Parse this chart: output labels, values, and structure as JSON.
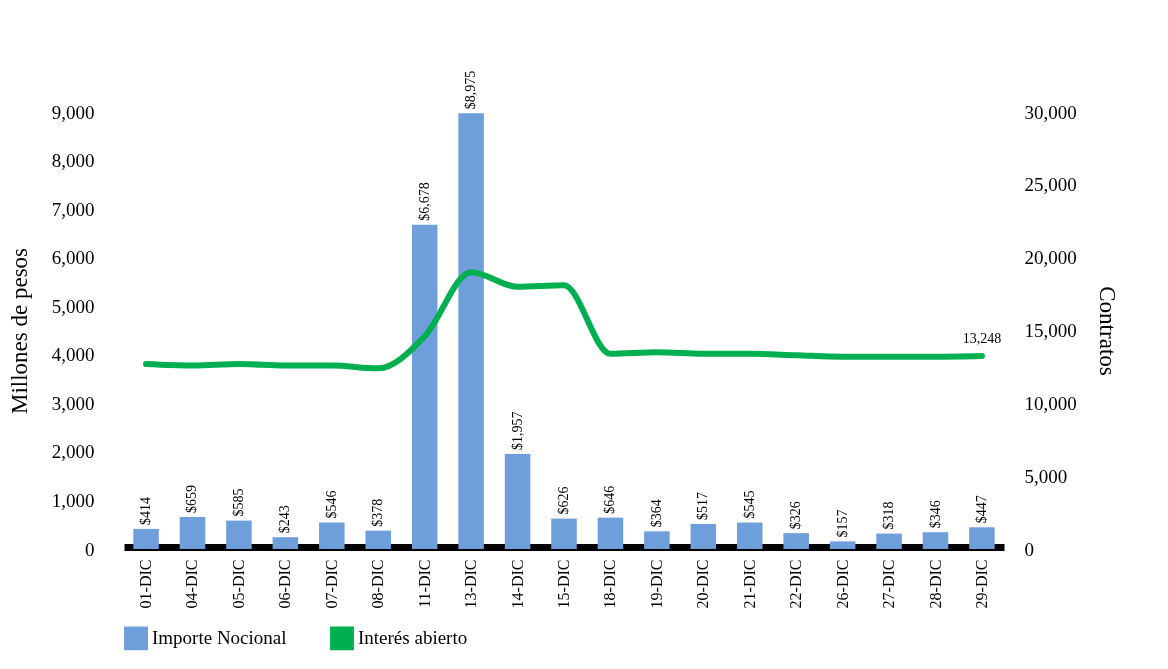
{
  "chart_data": {
    "type": "bar",
    "ylabel": "Millones de pesos",
    "y2label": "Contratos",
    "categories": [
      "01-DIC",
      "04-DIC",
      "05-DIC",
      "06-DIC",
      "07-DIC",
      "08-DIC",
      "11-DIC",
      "13-DIC",
      "14-DIC",
      "15-DIC",
      "18-DIC",
      "19-DIC",
      "20-DIC",
      "21-DIC",
      "22-DIC",
      "26-DIC",
      "27-DIC",
      "28-DIC",
      "29-DIC"
    ],
    "series": [
      {
        "name": "Importe Nocional",
        "color": "#6f9fdb",
        "values": [
          414,
          659,
          585,
          243,
          546,
          378,
          6678,
          8975,
          1957,
          626,
          646,
          364,
          517,
          545,
          326,
          157,
          318,
          346,
          447
        ],
        "value_labels": [
          "$414",
          "$659",
          "$585",
          "$243",
          "$546",
          "$378",
          "$6,678",
          "$8,975",
          "$1,957",
          "$626",
          "$646",
          "$364",
          "$517",
          "$545",
          "$326",
          "$157",
          "$318",
          "$346",
          "$447"
        ]
      },
      {
        "name": "Interés abierto",
        "type": "line",
        "axis": "y2",
        "color": "#00b050",
        "values": [
          12700,
          12600,
          12700,
          12600,
          12600,
          12400,
          14600,
          19000,
          18000,
          18100,
          13400,
          13500,
          13400,
          13400,
          13300,
          13200,
          13200,
          13200,
          13248
        ],
        "value_labels": [
          null,
          null,
          null,
          null,
          null,
          null,
          null,
          null,
          null,
          null,
          null,
          null,
          null,
          null,
          null,
          null,
          null,
          null,
          "13,248"
        ]
      }
    ],
    "ylim": [
      0,
      9000
    ],
    "yticks": [
      {
        "value": 0,
        "label": "0"
      },
      {
        "value": 1000,
        "label": "1,000"
      },
      {
        "value": 2000,
        "label": "2,000"
      },
      {
        "value": 3000,
        "label": "3,000"
      },
      {
        "value": 4000,
        "label": "4,000"
      },
      {
        "value": 5000,
        "label": "5,000"
      },
      {
        "value": 6000,
        "label": "6,000"
      },
      {
        "value": 7000,
        "label": "7,000"
      },
      {
        "value": 8000,
        "label": "8,000"
      },
      {
        "value": 9000,
        "label": "9,000"
      }
    ],
    "y2lim": [
      0,
      30000
    ],
    "y2ticks": [
      {
        "value": 0,
        "label": "0"
      },
      {
        "value": 5000,
        "label": "5,000"
      },
      {
        "value": 10000,
        "label": "10,000"
      },
      {
        "value": 15000,
        "label": "15,000"
      },
      {
        "value": 20000,
        "label": "20,000"
      },
      {
        "value": 25000,
        "label": "25,000"
      },
      {
        "value": 30000,
        "label": "30,000"
      }
    ],
    "legend": "bottom",
    "grid": false
  }
}
